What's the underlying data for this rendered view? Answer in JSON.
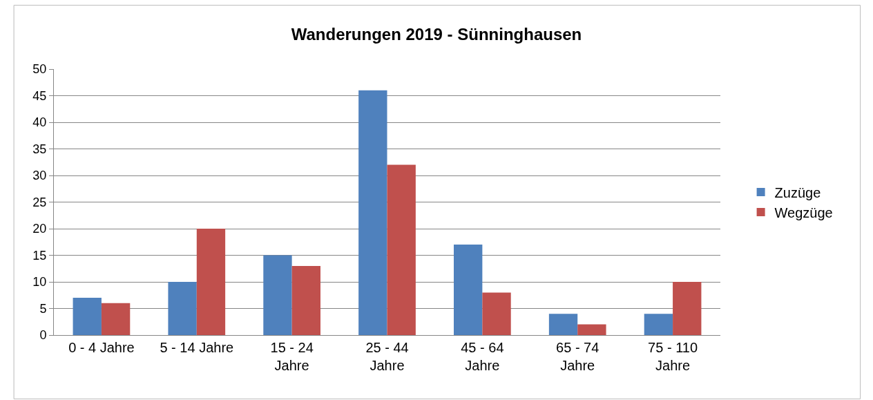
{
  "chart_data": {
    "type": "bar",
    "title": "Wanderungen 2019 - Sünninghausen",
    "categories": [
      "0 - 4 Jahre",
      "5 - 14 Jahre",
      "15 - 24 Jahre",
      "25 - 44 Jahre",
      "45 - 64 Jahre",
      "65 - 74 Jahre",
      "75 - 110 Jahre"
    ],
    "series": [
      {
        "name": "Zuzüge",
        "color": "#4f81bd",
        "values": [
          7,
          10,
          15,
          46,
          17,
          4,
          4
        ]
      },
      {
        "name": "Wegzüge",
        "color": "#c0504d",
        "values": [
          6,
          20,
          13,
          32,
          8,
          2,
          10
        ]
      }
    ],
    "ylim": [
      0,
      50
    ],
    "yticks": [
      0,
      5,
      10,
      15,
      20,
      25,
      30,
      35,
      40,
      45,
      50
    ],
    "grid": "y",
    "legend": "right"
  }
}
